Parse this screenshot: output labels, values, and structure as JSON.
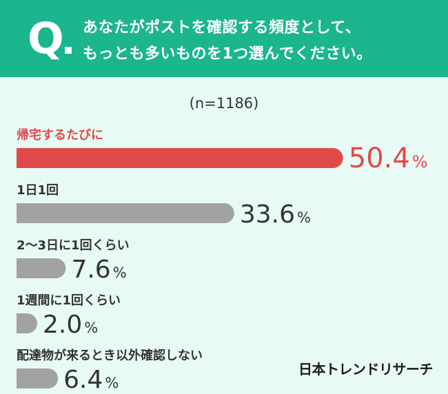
{
  "question": {
    "mark": "Q",
    "line1": "あなたがポストを確認する頻度として、",
    "line2": "もっとも多いものを1つ選んでください。"
  },
  "sample_label": "(n=1186)",
  "brand": "日本トレンドリサーチ",
  "colors": {
    "header": "#1bb58e",
    "highlight": "#e04a4a",
    "bar": "#a2a2a2",
    "background": "#e8faf5"
  },
  "chart_data": {
    "type": "bar",
    "orientation": "horizontal",
    "unit": "%",
    "categories": [
      "帰宅するたびに",
      "1日1回",
      "2〜3日に1回くらい",
      "1週間に1回くらい",
      "配達物が来るとき以外確認しない"
    ],
    "values": [
      50.4,
      33.6,
      7.6,
      2.0,
      6.4
    ],
    "highlight_index": 0
  }
}
